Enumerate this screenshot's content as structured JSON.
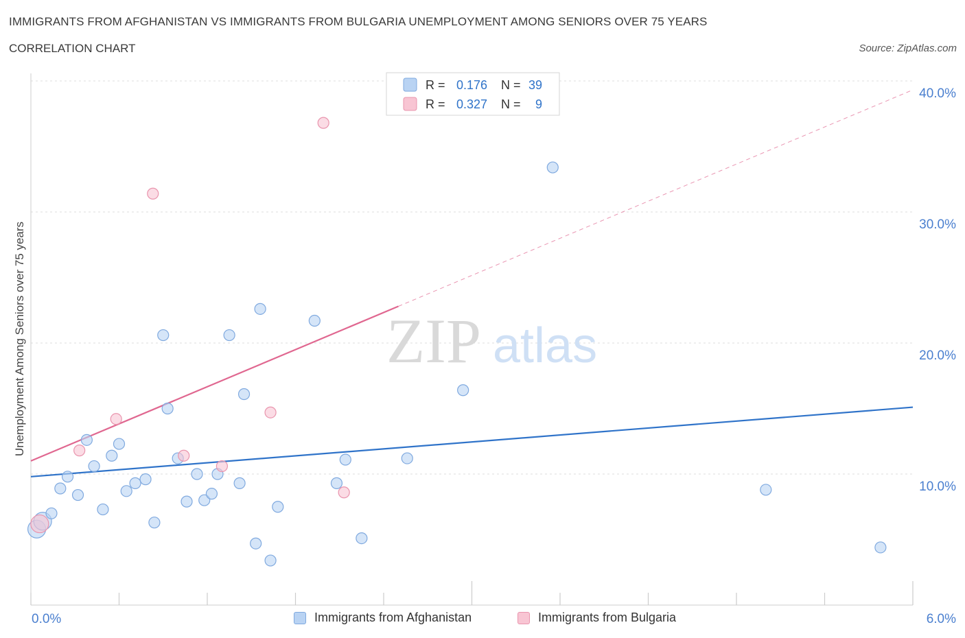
{
  "header": {
    "title": "IMMIGRANTS FROM AFGHANISTAN VS IMMIGRANTS FROM BULGARIA UNEMPLOYMENT AMONG SENIORS OVER 75 YEARS",
    "subtitle": "CORRELATION CHART",
    "source": "Source: ZipAtlas.com"
  },
  "watermark": {
    "zip": "ZIP",
    "atlas": "atlas"
  },
  "colors": {
    "blue_fill": "#b9d3f3",
    "blue_stroke": "#7fa9df",
    "blue_line": "#2f73c9",
    "pink_fill": "#f8c5d3",
    "pink_stroke": "#e994ad",
    "pink_line": "#e06790",
    "axis_text": "#4a7fcf",
    "grid": "#dddddd"
  },
  "chart_data": {
    "type": "scatter",
    "title": "IMMIGRANTS FROM AFGHANISTAN VS IMMIGRANTS FROM BULGARIA UNEMPLOYMENT AMONG SENIORS OVER 75 YEARS",
    "xlabel": "",
    "ylabel": "Unemployment Among Seniors over 75 years",
    "xlim": [
      0,
      6
    ],
    "ylim": [
      0,
      40
    ],
    "x_tick_labels": [
      "0.0%",
      "6.0%"
    ],
    "y_ticks": [
      10,
      20,
      30,
      40
    ],
    "y_tick_labels": [
      "10.0%",
      "20.0%",
      "30.0%",
      "40.0%"
    ],
    "grid": true,
    "legend_top": [
      {
        "r_label": "R =",
        "r_value": "0.176",
        "n_label": "N =",
        "n_value": "39"
      },
      {
        "r_label": "R =",
        "r_value": "0.327",
        "n_label": "N =",
        "n_value": "9"
      }
    ],
    "series": [
      {
        "name": "Immigrants from Afghanistan",
        "color": "blue",
        "points": [
          [
            0.04,
            5.8
          ],
          [
            0.08,
            6.4
          ],
          [
            0.14,
            7.0
          ],
          [
            0.2,
            8.9
          ],
          [
            0.25,
            9.8
          ],
          [
            0.32,
            8.4
          ],
          [
            0.38,
            12.6
          ],
          [
            0.43,
            10.6
          ],
          [
            0.49,
            7.3
          ],
          [
            0.55,
            11.4
          ],
          [
            0.6,
            12.3
          ],
          [
            0.65,
            8.7
          ],
          [
            0.71,
            9.3
          ],
          [
            0.78,
            9.6
          ],
          [
            0.84,
            6.3
          ],
          [
            0.9,
            20.6
          ],
          [
            0.93,
            15.0
          ],
          [
            1.0,
            11.2
          ],
          [
            1.06,
            7.9
          ],
          [
            1.13,
            10.0
          ],
          [
            1.18,
            8.0
          ],
          [
            1.23,
            8.5
          ],
          [
            1.27,
            10.0
          ],
          [
            1.35,
            20.6
          ],
          [
            1.42,
            9.3
          ],
          [
            1.45,
            16.1
          ],
          [
            1.53,
            4.7
          ],
          [
            1.56,
            22.6
          ],
          [
            1.63,
            3.4
          ],
          [
            1.68,
            7.5
          ],
          [
            1.93,
            21.7
          ],
          [
            2.08,
            9.3
          ],
          [
            2.14,
            11.1
          ],
          [
            2.25,
            5.1
          ],
          [
            2.56,
            11.2
          ],
          [
            2.94,
            16.4
          ],
          [
            3.55,
            33.4
          ],
          [
            5.0,
            8.8
          ],
          [
            5.78,
            4.4
          ]
        ],
        "trend": {
          "x0": 0,
          "y0": 9.8,
          "x1": 6,
          "y1": 15.1,
          "dashed_to": 6
        }
      },
      {
        "name": "Immigrants from Bulgaria",
        "color": "pink",
        "points": [
          [
            0.06,
            6.2
          ],
          [
            0.33,
            11.8
          ],
          [
            0.58,
            14.2
          ],
          [
            0.83,
            31.4
          ],
          [
            1.04,
            11.4
          ],
          [
            1.3,
            10.6
          ],
          [
            1.63,
            14.7
          ],
          [
            1.99,
            36.8
          ],
          [
            2.13,
            8.6
          ]
        ],
        "trend": {
          "x0": 0,
          "y0": 11.0,
          "x1": 2.5,
          "y1": 22.8,
          "dashed_to": 6
        }
      }
    ]
  }
}
